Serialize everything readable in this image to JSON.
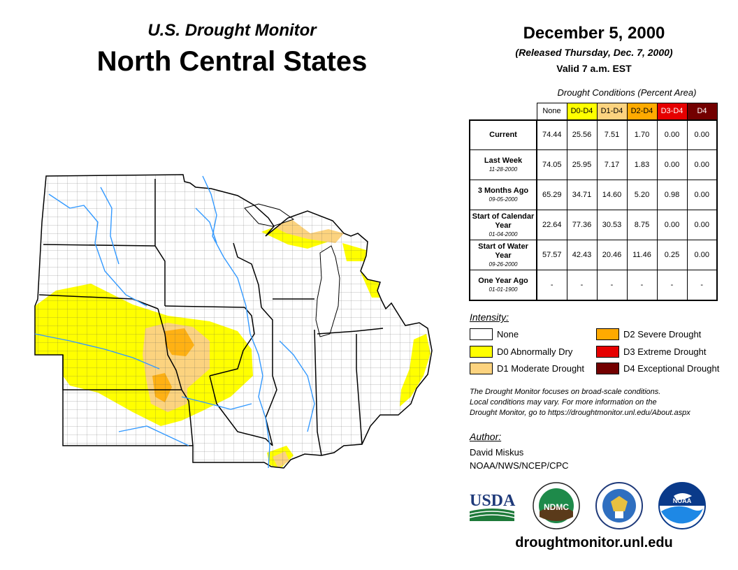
{
  "header": {
    "subtitle": "U.S. Drought Monitor",
    "title": "North Central States",
    "date": "December 5, 2000",
    "released": "(Released Thursday, Dec. 7, 2000)",
    "valid": "Valid 7 a.m. EST"
  },
  "conditions": {
    "caption": "Drought Conditions (Percent Area)",
    "columns": [
      "None",
      "D0-D4",
      "D1-D4",
      "D2-D4",
      "D3-D4",
      "D4"
    ],
    "column_colors": [
      "#ffffff",
      "#ffff00",
      "#fcd37f",
      "#ffaa00",
      "#e60000",
      "#730000"
    ],
    "rows": [
      {
        "label": "Current",
        "sublabel": "",
        "values": [
          "74.44",
          "25.56",
          "7.51",
          "1.70",
          "0.00",
          "0.00"
        ]
      },
      {
        "label": "Last Week",
        "sublabel": "11-28-2000",
        "values": [
          "74.05",
          "25.95",
          "7.17",
          "1.83",
          "0.00",
          "0.00"
        ]
      },
      {
        "label": "3 Months Ago",
        "sublabel": "09-05-2000",
        "values": [
          "65.29",
          "34.71",
          "14.60",
          "5.20",
          "0.98",
          "0.00"
        ]
      },
      {
        "label": "Start of Calendar Year",
        "sublabel": "01-04-2000",
        "values": [
          "22.64",
          "77.36",
          "30.53",
          "8.75",
          "0.00",
          "0.00"
        ]
      },
      {
        "label": "Start of Water Year",
        "sublabel": "09-26-2000",
        "values": [
          "57.57",
          "42.43",
          "20.46",
          "11.46",
          "0.25",
          "0.00"
        ]
      },
      {
        "label": "One Year Ago",
        "sublabel": "01-01-1900",
        "values": [
          "-",
          "-",
          "-",
          "-",
          "-",
          "-"
        ]
      }
    ]
  },
  "legend": {
    "title": "Intensity:",
    "items": [
      {
        "label": "None",
        "color": "#ffffff"
      },
      {
        "label": "D0 Abnormally Dry",
        "color": "#ffff00"
      },
      {
        "label": "D1 Moderate Drought",
        "color": "#fcd37f"
      },
      {
        "label": "D2 Severe Drought",
        "color": "#ffaa00"
      },
      {
        "label": "D3 Extreme Drought",
        "color": "#e60000"
      },
      {
        "label": "D4 Exceptional Drought",
        "color": "#730000"
      }
    ]
  },
  "notes": {
    "line1": "The Drought Monitor focuses on broad-scale conditions.",
    "line2": "Local conditions may vary. For more information on the",
    "line3": "Drought Monitor, go to https://droughtmonitor.unl.edu/About.aspx"
  },
  "author": {
    "title": "Author:",
    "name": "David Miskus",
    "org": "NOAA/NWS/NCEP/CPC"
  },
  "logos": {
    "usda": "USDA",
    "ndmc": "NDMC",
    "noaa": "NOAA"
  },
  "footer": {
    "site": "droughtmonitor.unl.edu"
  }
}
